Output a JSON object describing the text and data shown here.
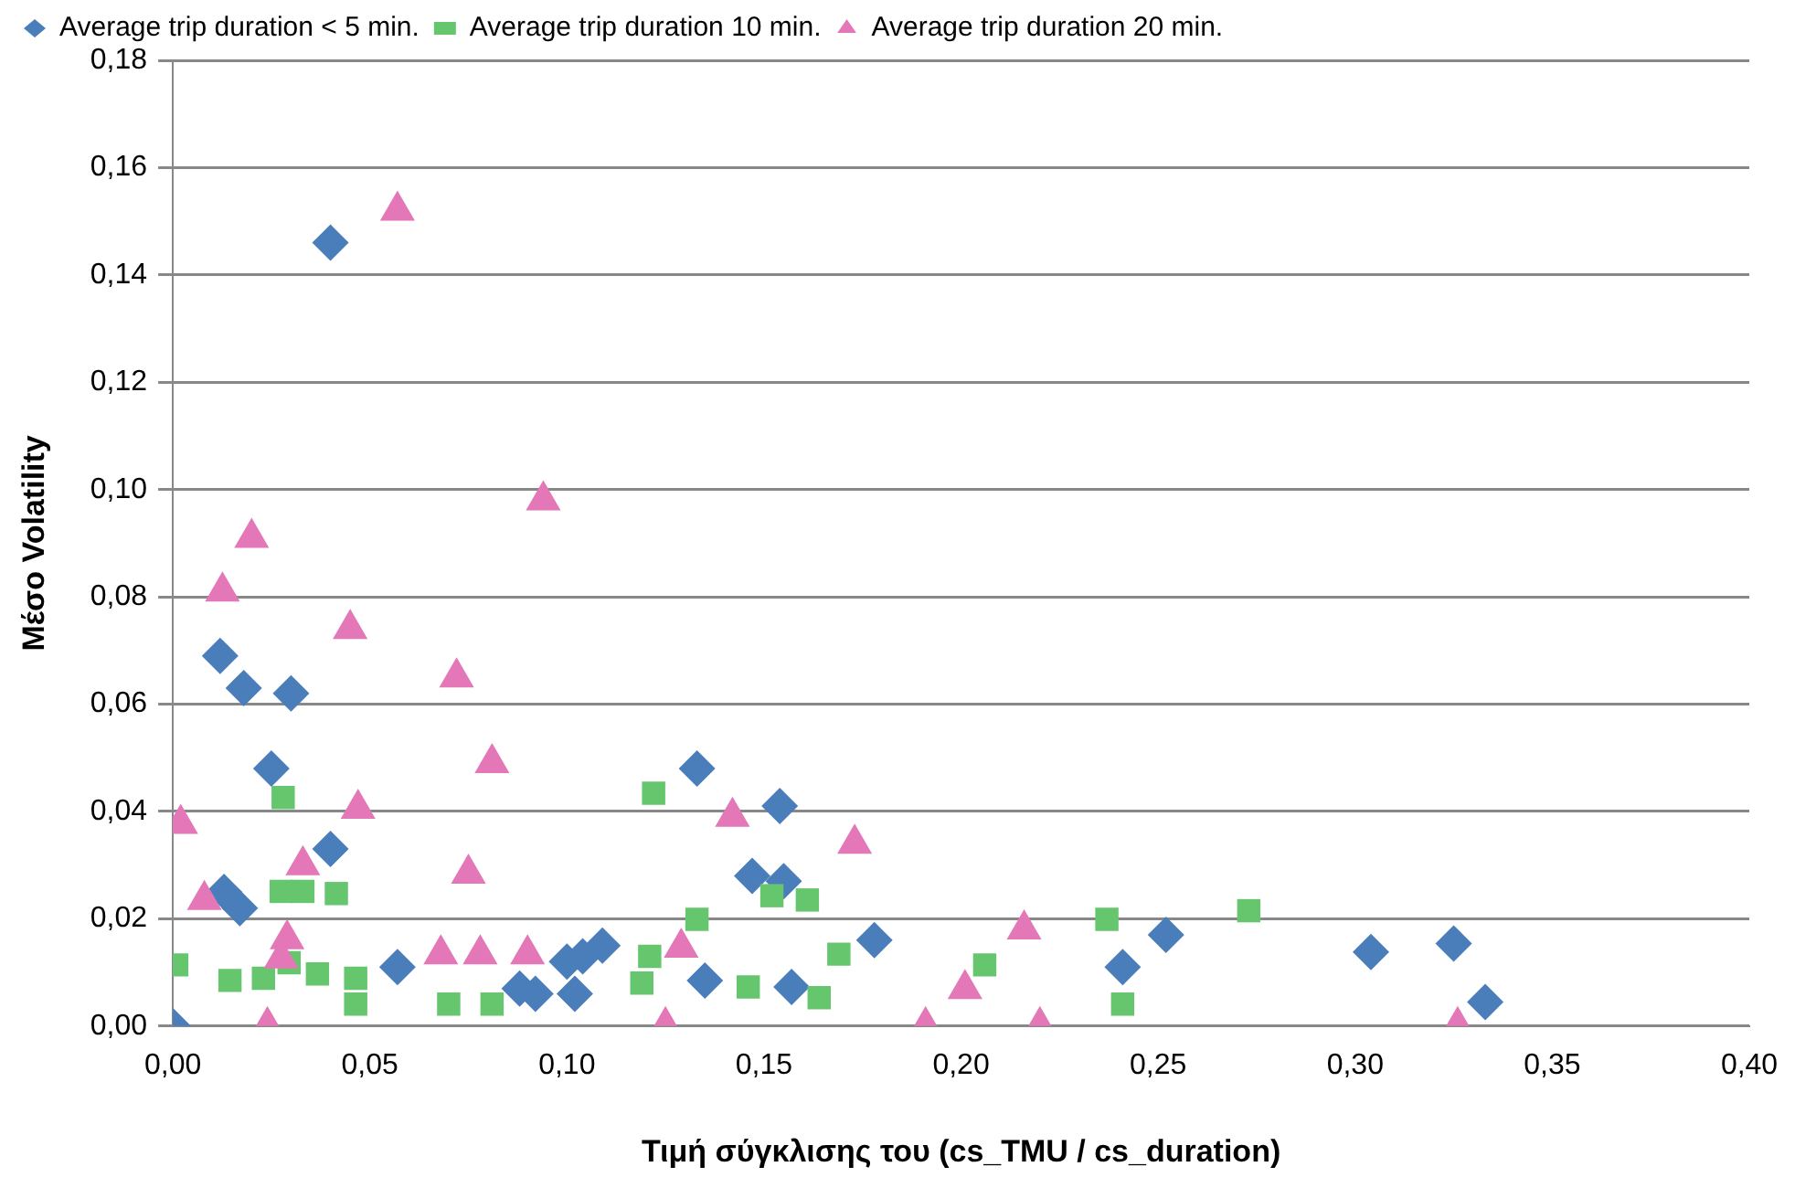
{
  "chart_data": {
    "type": "scatter",
    "xlabel": "Τιμή σύγκλισης του (cs_TMU / cs_duration)",
    "ylabel": "Μέσο Volatility",
    "xlim": [
      0,
      0.4
    ],
    "xticks": [
      {
        "value": 0,
        "label": "0,00"
      },
      {
        "value": 0.05,
        "label": "0,05"
      },
      {
        "value": 0.1,
        "label": "0,10"
      },
      {
        "value": 0.15,
        "label": "0,15"
      },
      {
        "value": 0.2,
        "label": "0,20"
      },
      {
        "value": 0.25,
        "label": "0,25"
      },
      {
        "value": 0.3,
        "label": "0,30"
      },
      {
        "value": 0.35,
        "label": "0,35"
      },
      {
        "value": 0.4,
        "label": "0,40"
      }
    ],
    "ylim": [
      0,
      0.18
    ],
    "yticks": [
      {
        "value": 0,
        "label": "0,00"
      },
      {
        "value": 0.02,
        "label": "0,02"
      },
      {
        "value": 0.04,
        "label": "0,04"
      },
      {
        "value": 0.06,
        "label": "0,06"
      },
      {
        "value": 0.08,
        "label": "0,08"
      },
      {
        "value": 0.1,
        "label": "0,10"
      },
      {
        "value": 0.12,
        "label": "0,12"
      },
      {
        "value": 0.14,
        "label": "0,14"
      },
      {
        "value": 0.16,
        "label": "0,16"
      },
      {
        "value": 0.18,
        "label": "0,18"
      }
    ],
    "grid": "y",
    "legend": "top left",
    "series": [
      {
        "name": "Average trip duration < 5 min.",
        "color": "#4a7ebb",
        "marker": "diamond",
        "x": [
          0,
          0.04,
          0.012,
          0.018,
          0.03,
          0.025,
          0.04,
          0.013,
          0.017,
          0.057,
          0.088,
          0.092,
          0.1,
          0.104,
          0.109,
          0.102,
          0.133,
          0.154,
          0.147,
          0.155,
          0.135,
          0.157,
          0.178,
          0.241,
          0.252,
          0.304,
          0.325,
          0.333
        ],
        "values": [
          0,
          0.146,
          0.069,
          0.063,
          0.062,
          0.048,
          0.033,
          0.025,
          0.022,
          0.011,
          0.007,
          0.006,
          0.012,
          0.013,
          0.015,
          0.006,
          0.048,
          0.041,
          0.028,
          0.027,
          0.0085,
          0.0073,
          0.016,
          0.011,
          0.017,
          0.0138,
          0.0154,
          0.0045
        ]
      },
      {
        "name": "Average trip duration 10 min.",
        "color": "#66c66e",
        "marker": "square",
        "x": [
          0.001,
          0.0145,
          0.023,
          0.0295,
          0.028,
          0.0275,
          0.033,
          0.0415,
          0.0367,
          0.0464,
          0.0464,
          0.07,
          0.081,
          0.122,
          0.121,
          0.119,
          0.133,
          0.146,
          0.152,
          0.161,
          0.169,
          0.164,
          0.206,
          0.237,
          0.241,
          0.273
        ],
        "values": [
          0.0114,
          0.0085,
          0.0089,
          0.0118,
          0.0426,
          0.0251,
          0.0251,
          0.0247,
          0.0097,
          0.0089,
          0.0041,
          0.0041,
          0.0041,
          0.0434,
          0.013,
          0.008,
          0.0199,
          0.0073,
          0.0243,
          0.0235,
          0.0134,
          0.0053,
          0.0114,
          0.0199,
          0.0041,
          0.0215
        ]
      },
      {
        "name": "Average trip duration 20 min.",
        "color": "#e377b8",
        "marker": "triangle",
        "x": [
          0.057,
          0.02,
          0.0126,
          0.045,
          0.072,
          0.094,
          0.081,
          0.047,
          0.002,
          0.033,
          0.075,
          0.008,
          0.029,
          0.0275,
          0.024,
          0.068,
          0.078,
          0.09,
          0.125,
          0.142,
          0.173,
          0.129,
          0.191,
          0.201,
          0.216,
          0.22,
          0.326
        ],
        "values": [
          0.152,
          0.091,
          0.081,
          0.074,
          0.065,
          0.098,
          0.049,
          0.0405,
          0.0377,
          0.03,
          0.0284,
          0.0235,
          0.0162,
          0.0126,
          0,
          0.0134,
          0.0134,
          0.0134,
          0,
          0.039,
          0.034,
          0.0146,
          0,
          0.0069,
          0.018,
          0,
          0
        ]
      }
    ]
  }
}
